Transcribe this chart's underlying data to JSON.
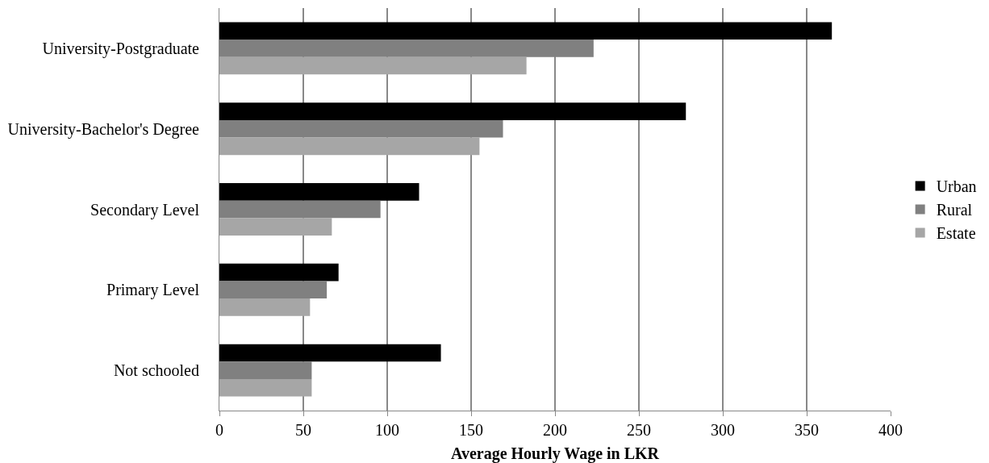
{
  "chart_data": {
    "type": "bar",
    "orientation": "horizontal",
    "xlabel": "Average Hourly Wage in LKR",
    "categories": [
      "University-Postgraduate",
      "University-Bachelor's Degree",
      "Secondary Level",
      "Primary Level",
      "Not schooled"
    ],
    "series": [
      {
        "name": "Urban",
        "color": "#000000",
        "values": [
          365,
          278,
          119,
          71,
          132
        ]
      },
      {
        "name": "Rural",
        "color": "#808080",
        "values": [
          223,
          169,
          96,
          64,
          55
        ]
      },
      {
        "name": "Estate",
        "color": "#a6a6a6",
        "values": [
          183,
          155,
          67,
          54,
          55
        ]
      }
    ],
    "xlim": [
      0,
      400
    ],
    "xticks": [
      0,
      50,
      100,
      150,
      200,
      250,
      300,
      350,
      400
    ],
    "grid": "x",
    "legend": "right"
  }
}
